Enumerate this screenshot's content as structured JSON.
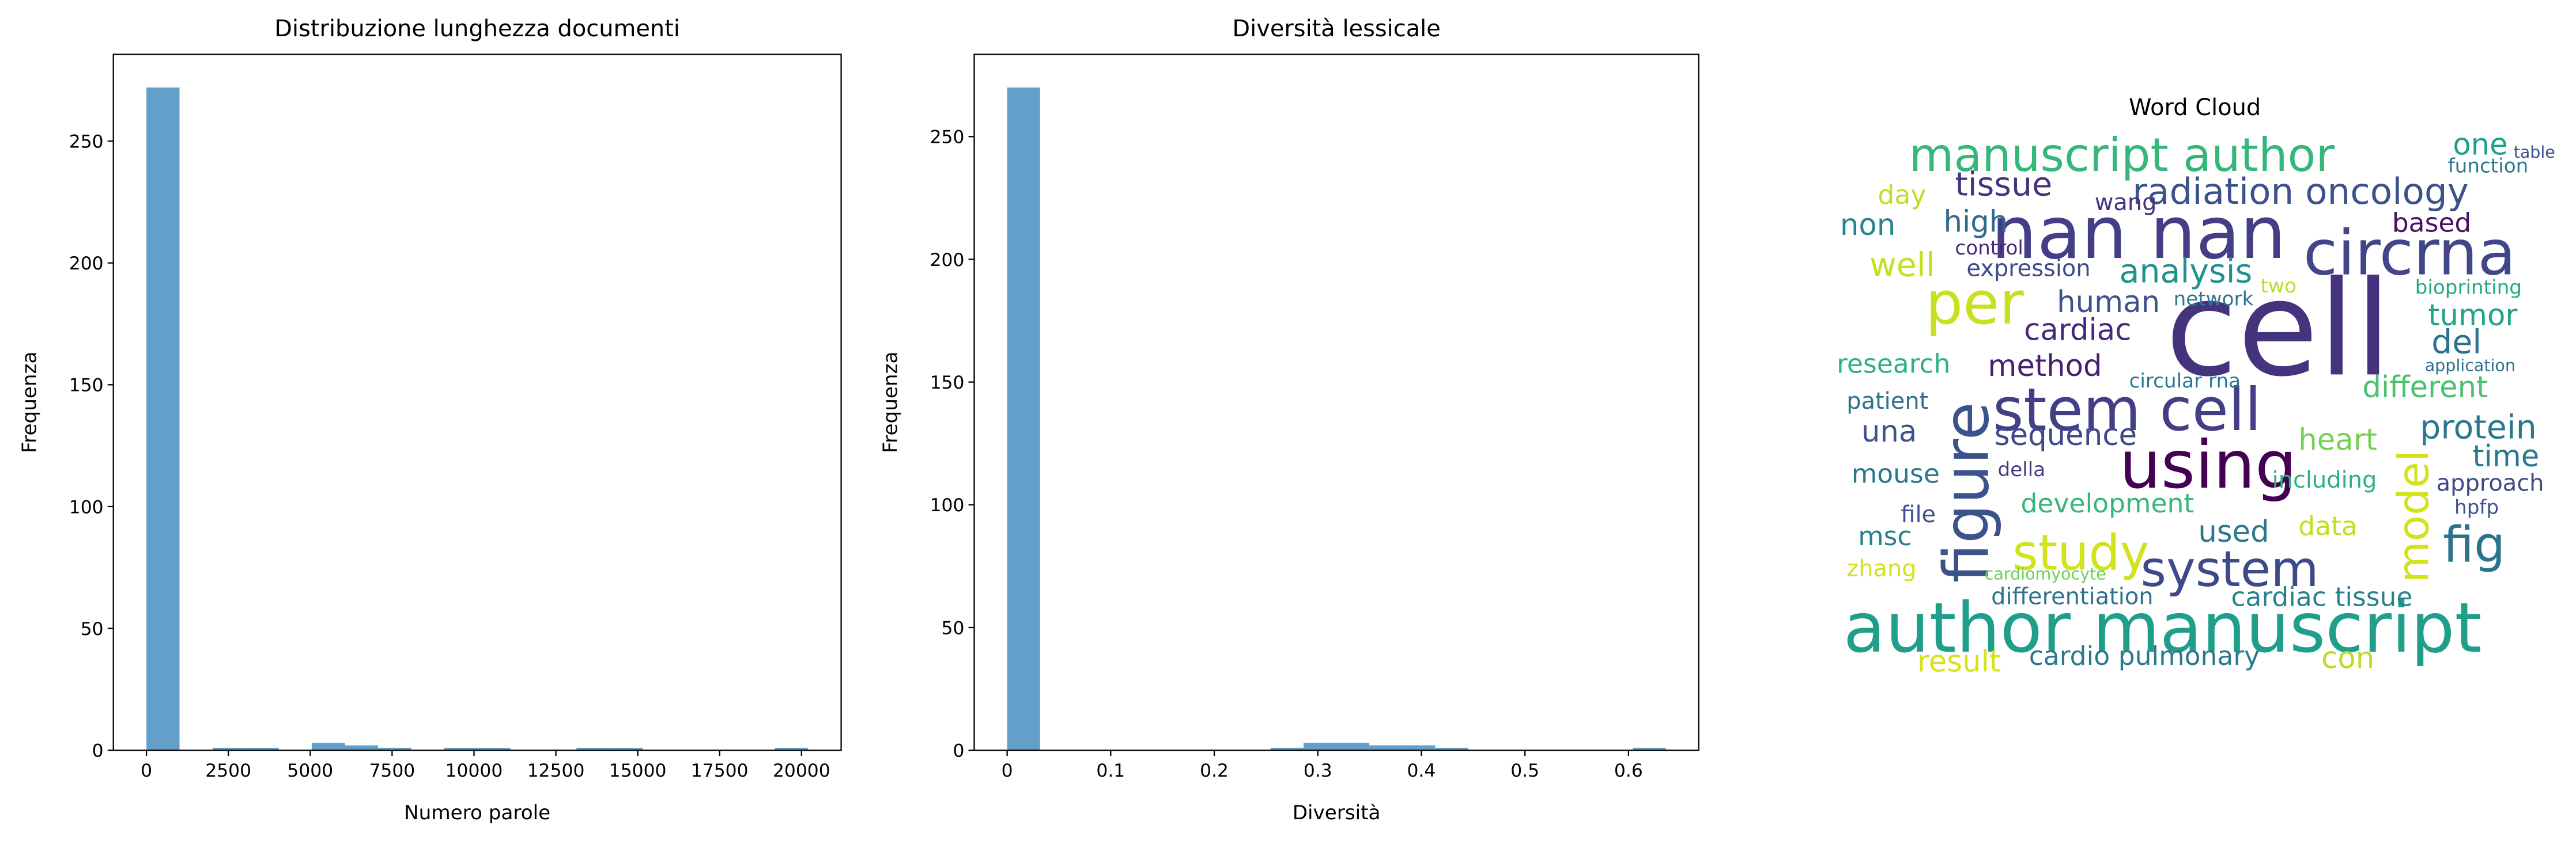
{
  "chart_data": [
    {
      "type": "histogram",
      "title": "Distribuzione lunghezza documenti",
      "x_label": "Numero parole",
      "y_label": "Frequenza",
      "bins": [
        0,
        1010,
        2020,
        3030,
        4040,
        5050,
        6060,
        7070,
        8080,
        9090,
        10100,
        11110,
        12120,
        13130,
        14140,
        15150,
        16160,
        17170,
        18180,
        19190,
        20200
      ],
      "values": [
        272,
        0,
        1,
        1,
        0,
        3,
        2,
        1,
        0,
        1,
        1,
        0,
        0,
        1,
        1,
        0,
        0,
        0,
        0,
        1
      ],
      "color": "#1f77b4",
      "alpha": 0.7,
      "xlim": [
        -1010,
        21210
      ],
      "xticks": [
        0,
        2500,
        5000,
        7500,
        10000,
        12500,
        15000,
        17500,
        20000
      ],
      "ylim": [
        0,
        285.6
      ],
      "yticks": [
        0,
        50,
        100,
        150,
        200,
        250
      ]
    },
    {
      "type": "histogram",
      "title": "Diversità lessicale",
      "x_label": "Diversità",
      "y_label": "Frequenza",
      "bins": [
        0,
        0.0318,
        0.0636,
        0.0954,
        0.1272,
        0.159,
        0.1908,
        0.2226,
        0.2544,
        0.2862,
        0.318,
        0.3498,
        0.3816,
        0.4134,
        0.4452,
        0.477,
        0.5088,
        0.5406,
        0.5724,
        0.6042,
        0.636
      ],
      "values": [
        270,
        0,
        0,
        0,
        0,
        0,
        0,
        0,
        1,
        3,
        3,
        2,
        2,
        1,
        0,
        0,
        0,
        0,
        0,
        1
      ],
      "color": "#1f77b4",
      "alpha": 0.7,
      "xlim": [
        -0.0318,
        0.6678
      ],
      "xticks": [
        0,
        0.1,
        0.2,
        0.3,
        0.4,
        0.5,
        0.6
      ],
      "ylim": [
        0,
        283.5
      ],
      "yticks": [
        0,
        50,
        100,
        150,
        200,
        250
      ]
    },
    {
      "type": "wordcloud",
      "title": "Word Cloud",
      "words": [
        "cell",
        "author manuscript",
        "nan nan",
        "manuscript author",
        "circrna",
        "stem cell",
        "using",
        "per",
        "figure",
        "study",
        "system",
        "model",
        "fig",
        "radiation oncology",
        "tissue",
        "analysis",
        "human",
        "cardiac",
        "method",
        "research",
        "well",
        "non",
        "high",
        "day",
        "wang",
        "control",
        "expression",
        "una",
        "patient",
        "mouse",
        "msc",
        "zhang",
        "sequence",
        "development",
        "della",
        "file",
        "differentiation",
        "cardiomyocyte",
        "result",
        "cardio pulmonary",
        "cardiac tissue",
        "con",
        "used",
        "data",
        "including",
        "heart",
        "protein",
        "time",
        "approach",
        "hpfp",
        "different",
        "del",
        "tumor",
        "bioprinting",
        "based",
        "one",
        "function",
        "network",
        "circular rna",
        "two",
        "application",
        "table"
      ]
    }
  ]
}
